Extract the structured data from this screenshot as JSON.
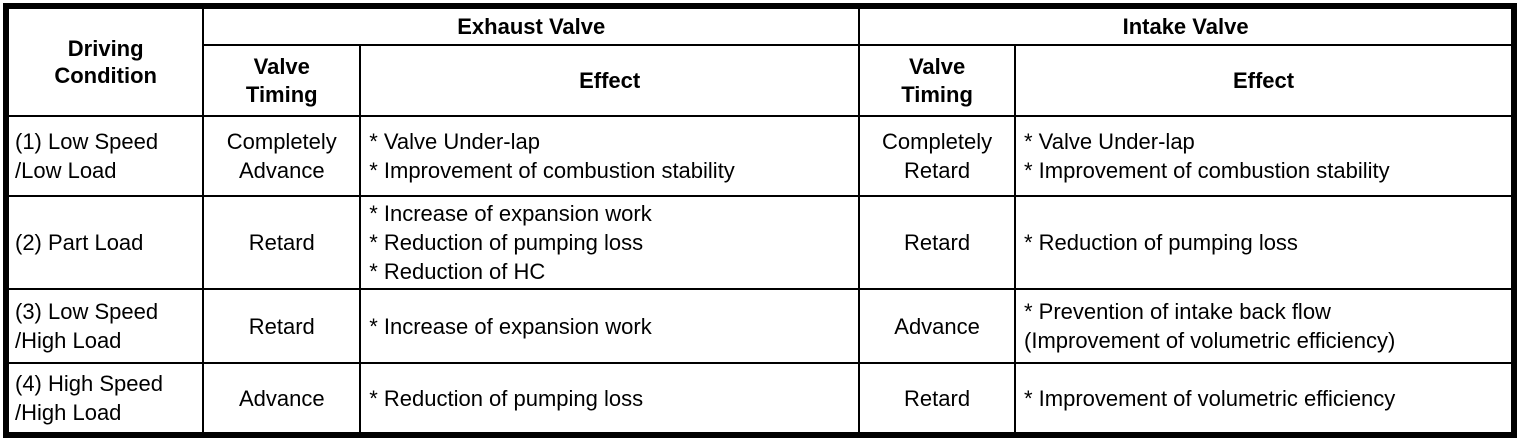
{
  "colors": {
    "border": "#000000",
    "background": "#ffffff",
    "text": "#000000"
  },
  "table": {
    "header": {
      "driving_condition": "Driving Condition",
      "exhaust": {
        "title": "Exhaust Valve",
        "valve_timing": "Valve Timing",
        "effect": "Effect"
      },
      "intake": {
        "title": "Intake Valve",
        "valve_timing": "Valve Timing",
        "effect": "Effect"
      }
    },
    "rows": [
      {
        "condition": [
          "(1) Low Speed",
          "/Low Load"
        ],
        "exhaust_timing": [
          "Completely",
          "Advance"
        ],
        "exhaust_effect": [
          "* Valve Under-lap",
          "* Improvement of combustion stability"
        ],
        "intake_timing": [
          "Completely",
          "Retard"
        ],
        "intake_effect": [
          "* Valve Under-lap",
          "* Improvement of combustion stability"
        ]
      },
      {
        "condition": [
          "(2) Part Load"
        ],
        "exhaust_timing": [
          "Retard"
        ],
        "exhaust_effect": [
          "* Increase of expansion work",
          "* Reduction of pumping loss",
          "* Reduction of HC"
        ],
        "intake_timing": [
          "Retard"
        ],
        "intake_effect": [
          "* Reduction of pumping loss"
        ]
      },
      {
        "condition": [
          "(3) Low Speed",
          "/High Load"
        ],
        "exhaust_timing": [
          "Retard"
        ],
        "exhaust_effect": [
          "* Increase of expansion work"
        ],
        "intake_timing": [
          "Advance"
        ],
        "intake_effect": [
          "* Prevention of intake back flow",
          "(Improvement of volumetric efficiency)"
        ]
      },
      {
        "condition": [
          "(4) High Speed",
          "/High Load"
        ],
        "exhaust_timing": [
          "Advance"
        ],
        "exhaust_effect": [
          "* Reduction of pumping loss"
        ],
        "intake_timing": [
          "Retard"
        ],
        "intake_effect": [
          "* Improvement of volumetric efficiency"
        ]
      }
    ]
  }
}
